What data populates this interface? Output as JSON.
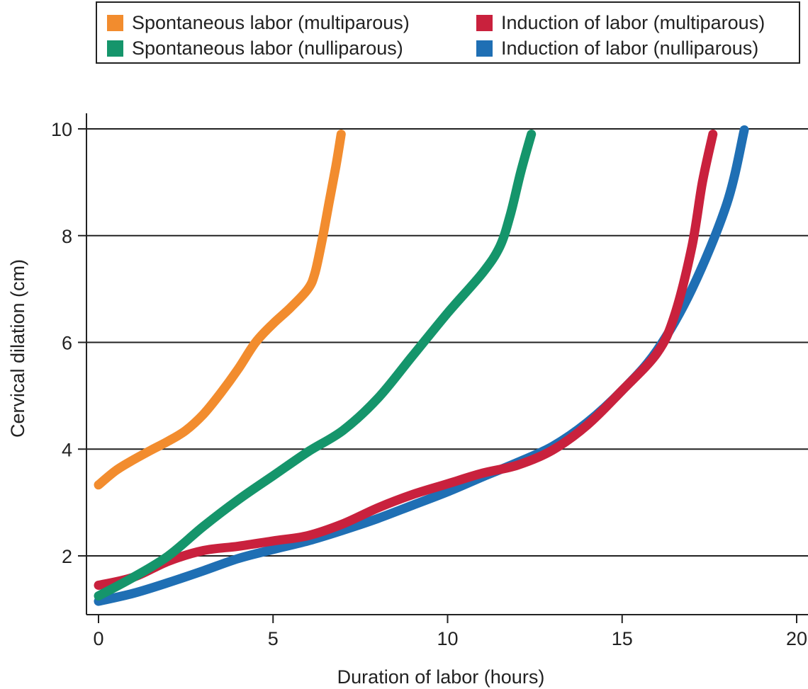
{
  "chart_data": {
    "type": "line",
    "title": "",
    "xlabel": "Duration of labor (hours)",
    "ylabel": "Cervical dilation (cm)",
    "xlim": [
      -0.3,
      20.3
    ],
    "ylim": [
      1.0,
      10.2
    ],
    "x_ticks": [
      0,
      5,
      10,
      15,
      20
    ],
    "y_ticks": [
      2,
      4,
      6,
      8,
      10
    ],
    "x_tick_labels": [
      "0",
      "5",
      "10",
      "15",
      "20"
    ],
    "y_tick_labels": [
      "2",
      "4",
      "6",
      "8",
      "10"
    ],
    "grid": "horizontal",
    "legend_position": "top",
    "series": [
      {
        "name": "Spontaneous labor (multiparous)",
        "color": "#f28c2e",
        "points": [
          [
            0,
            3.33
          ],
          [
            0.5,
            3.6
          ],
          [
            1,
            3.8
          ],
          [
            1.5,
            3.98
          ],
          [
            2,
            4.15
          ],
          [
            2.5,
            4.35
          ],
          [
            3,
            4.65
          ],
          [
            3.5,
            5.05
          ],
          [
            4,
            5.5
          ],
          [
            4.5,
            6.0
          ],
          [
            5,
            6.35
          ],
          [
            5.5,
            6.65
          ],
          [
            6,
            7.0
          ],
          [
            6.2,
            7.3
          ],
          [
            6.4,
            7.9
          ],
          [
            6.6,
            8.6
          ],
          [
            6.8,
            9.3
          ],
          [
            6.95,
            9.9
          ]
        ]
      },
      {
        "name": "Spontaneous labor (nulliparous)",
        "color": "#15956b",
        "points": [
          [
            0,
            1.25
          ],
          [
            1,
            1.6
          ],
          [
            2,
            2.0
          ],
          [
            3,
            2.55
          ],
          [
            4,
            3.05
          ],
          [
            5,
            3.5
          ],
          [
            6,
            3.95
          ],
          [
            7,
            4.35
          ],
          [
            8,
            4.95
          ],
          [
            9,
            5.75
          ],
          [
            10,
            6.55
          ],
          [
            11,
            7.3
          ],
          [
            11.5,
            7.8
          ],
          [
            11.8,
            8.4
          ],
          [
            12.1,
            9.2
          ],
          [
            12.4,
            9.9
          ]
        ]
      },
      {
        "name": "Induction of labor (multiparous)",
        "color": "#c9213d",
        "points": [
          [
            0,
            1.45
          ],
          [
            1,
            1.6
          ],
          [
            2,
            1.9
          ],
          [
            3,
            2.1
          ],
          [
            4,
            2.18
          ],
          [
            5,
            2.28
          ],
          [
            6,
            2.38
          ],
          [
            7,
            2.6
          ],
          [
            8,
            2.9
          ],
          [
            9,
            3.15
          ],
          [
            10,
            3.35
          ],
          [
            11,
            3.55
          ],
          [
            12,
            3.7
          ],
          [
            13,
            3.98
          ],
          [
            14,
            4.45
          ],
          [
            15,
            5.1
          ],
          [
            16,
            5.8
          ],
          [
            16.5,
            6.5
          ],
          [
            17,
            7.8
          ],
          [
            17.3,
            9.0
          ],
          [
            17.6,
            9.9
          ]
        ]
      },
      {
        "name": "Induction of labor (nulliparous)",
        "color": "#1f6fb4",
        "points": [
          [
            0,
            1.15
          ],
          [
            1,
            1.3
          ],
          [
            2,
            1.5
          ],
          [
            3,
            1.72
          ],
          [
            4,
            1.95
          ],
          [
            5,
            2.12
          ],
          [
            6,
            2.28
          ],
          [
            7,
            2.48
          ],
          [
            8,
            2.7
          ],
          [
            9,
            2.95
          ],
          [
            10,
            3.2
          ],
          [
            11,
            3.48
          ],
          [
            12,
            3.75
          ],
          [
            13,
            4.05
          ],
          [
            14,
            4.5
          ],
          [
            15,
            5.1
          ],
          [
            16,
            5.85
          ],
          [
            17,
            7.0
          ],
          [
            18,
            8.6
          ],
          [
            18.5,
            9.98
          ]
        ]
      }
    ]
  }
}
